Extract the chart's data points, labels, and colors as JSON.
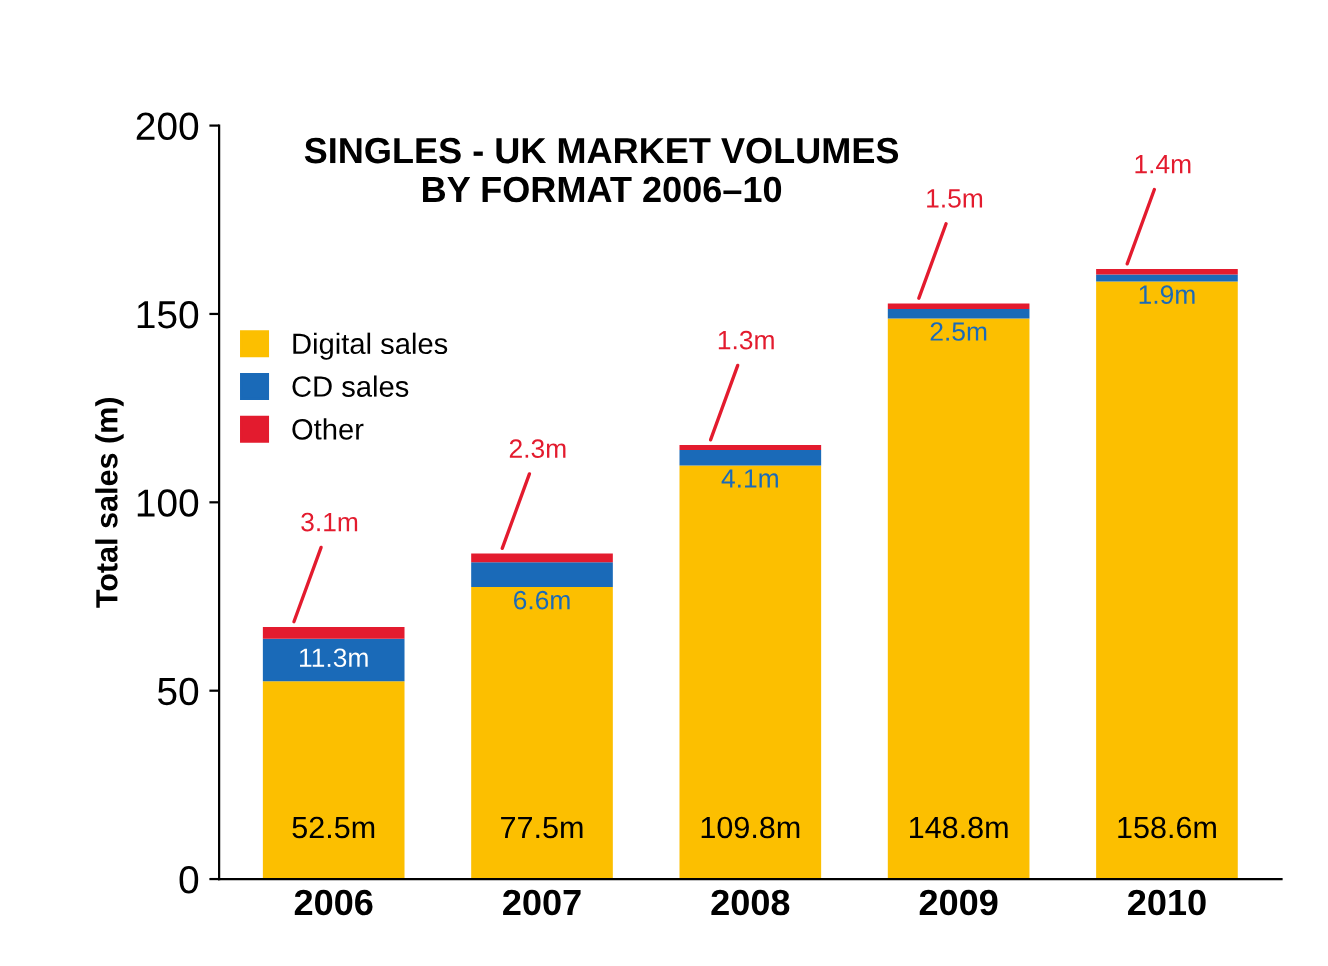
{
  "chart_data": {
    "type": "bar",
    "title": "SINGLES - UK MARKET VOLUMES\nBY FORMAT 2006–10",
    "ylabel": "Total sales (m)",
    "categories": [
      "2006",
      "2007",
      "2008",
      "2009",
      "2010"
    ],
    "stacked": true,
    "ylim": [
      0,
      200
    ],
    "yticks": [
      0,
      50,
      100,
      150,
      200
    ],
    "grid": false,
    "legend": "top left",
    "series": [
      {
        "name": "Digital sales",
        "color": "#fcbf00",
        "values": [
          52.5,
          77.5,
          109.8,
          148.8,
          158.6
        ],
        "value_labels": [
          "52.5m",
          "77.5m",
          "109.8m",
          "148.8m",
          "158.6m"
        ]
      },
      {
        "name": "CD sales",
        "color": "#1a6ab8",
        "values": [
          11.3,
          6.6,
          4.1,
          2.5,
          1.9
        ],
        "value_labels": [
          "11.3m",
          "6.6m",
          "4.1m",
          "2.5m",
          "1.9m"
        ]
      },
      {
        "name": "Other",
        "color": "#e31b2e",
        "values": [
          3.1,
          2.3,
          1.3,
          1.5,
          1.4
        ],
        "value_labels": [
          "3.1m",
          "2.3m",
          "1.3m",
          "1.5m",
          "1.4m"
        ]
      }
    ]
  }
}
